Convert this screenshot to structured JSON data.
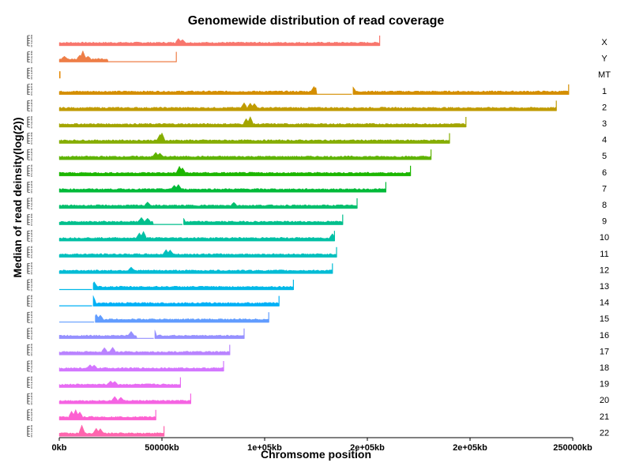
{
  "chart_data": {
    "type": "area",
    "title": "Genomewide distribution of read coverage",
    "xlabel": "Chromsome position",
    "ylabel": "Median of read deinsity(log(2))",
    "xlim": [
      0,
      250000
    ],
    "x_unit": "kb",
    "x_ticks": [
      {
        "value": 0,
        "label": "0kb"
      },
      {
        "value": 50000,
        "label": "50000kb"
      },
      {
        "value": 100000,
        "label": "1e+05kb"
      },
      {
        "value": 150000,
        "label": "2e+05kb"
      },
      {
        "value": 200000,
        "label": "2e+05kb"
      },
      {
        "value": 250000,
        "label": "250000kb"
      }
    ],
    "y_tick_labels": [
      "0",
      "2",
      "4",
      "6",
      "8"
    ],
    "series": [
      {
        "name": "X",
        "length": 156000,
        "color": "#F8766D",
        "peaks": [
          [
            58000,
            0.5
          ],
          [
            60000,
            0.35
          ]
        ],
        "gaps": []
      },
      {
        "name": "Y",
        "length": 57000,
        "color": "#EE7E47",
        "peaks": [
          [
            2500,
            0.3
          ],
          [
            10000,
            0.45
          ],
          [
            11500,
            1.0
          ],
          [
            14000,
            0.3
          ]
        ],
        "gaps": [
          [
            24000,
            57000
          ]
        ]
      },
      {
        "name": "MT",
        "length": 200,
        "color": "#E58700",
        "peaks": [],
        "gaps": []
      },
      {
        "name": "1",
        "length": 248000,
        "color": "#D48E00",
        "peaks": [
          [
            124000,
            0.6
          ],
          [
            125000,
            0.45
          ],
          [
            142000,
            1.0
          ],
          [
            143000,
            0.55
          ]
        ],
        "gaps": [
          [
            125500,
            142500
          ]
        ]
      },
      {
        "name": "2",
        "length": 242000,
        "color": "#C09B00",
        "peaks": [
          [
            90000,
            0.6
          ],
          [
            93000,
            0.55
          ],
          [
            95000,
            0.5
          ]
        ],
        "gaps": []
      },
      {
        "name": "3",
        "length": 198000,
        "color": "#A3A500",
        "peaks": [
          [
            91000,
            0.65
          ],
          [
            93000,
            0.9
          ]
        ],
        "gaps": []
      },
      {
        "name": "4",
        "length": 190000,
        "color": "#85AD00",
        "peaks": [
          [
            49000,
            0.7
          ],
          [
            50000,
            0.9
          ]
        ],
        "gaps": []
      },
      {
        "name": "5",
        "length": 181000,
        "color": "#5EB300",
        "peaks": [
          [
            47000,
            0.5
          ],
          [
            49000,
            0.4
          ]
        ],
        "gaps": []
      },
      {
        "name": "6",
        "length": 171000,
        "color": "#1CB600",
        "peaks": [
          [
            58500,
            0.8
          ],
          [
            60000,
            0.6
          ]
        ],
        "gaps": []
      },
      {
        "name": "7",
        "length": 159000,
        "color": "#00BA38",
        "peaks": [
          [
            56000,
            0.45
          ],
          [
            58000,
            0.55
          ]
        ],
        "gaps": []
      },
      {
        "name": "8",
        "length": 145000,
        "color": "#00BE6C",
        "peaks": [
          [
            43000,
            0.4
          ],
          [
            85000,
            0.35
          ]
        ],
        "gaps": []
      },
      {
        "name": "9",
        "length": 138000,
        "color": "#00BF8C",
        "peaks": [
          [
            40000,
            0.5
          ],
          [
            43000,
            0.4
          ],
          [
            60000,
            0.6
          ]
        ],
        "gaps": [
          [
            46000,
            60000
          ]
        ]
      },
      {
        "name": "10",
        "length": 134000,
        "color": "#00C0A5",
        "peaks": [
          [
            39000,
            0.6
          ],
          [
            41000,
            0.8
          ],
          [
            133000,
            0.5
          ]
        ],
        "gaps": []
      },
      {
        "name": "11",
        "length": 135000,
        "color": "#00BFBD",
        "peaks": [
          [
            52000,
            0.55
          ],
          [
            54000,
            0.5
          ]
        ],
        "gaps": []
      },
      {
        "name": "12",
        "length": 133000,
        "color": "#00BCD5",
        "peaks": [
          [
            35000,
            0.4
          ]
        ],
        "gaps": []
      },
      {
        "name": "13",
        "length": 114000,
        "color": "#00B8E7",
        "peaks": [
          [
            17000,
            0.6
          ]
        ],
        "gaps": [
          [
            0,
            16000
          ]
        ]
      },
      {
        "name": "14",
        "length": 107000,
        "color": "#00B0F6",
        "peaks": [
          [
            16500,
            0.9
          ]
        ],
        "gaps": [
          [
            0,
            16000
          ]
        ]
      },
      {
        "name": "15",
        "length": 102000,
        "color": "#619CFF",
        "peaks": [
          [
            18000,
            0.6
          ],
          [
            20000,
            0.5
          ]
        ],
        "gaps": [
          [
            0,
            17000
          ]
        ]
      },
      {
        "name": "16",
        "length": 90000,
        "color": "#9590FF",
        "peaks": [
          [
            35000,
            0.5
          ],
          [
            46000,
            1.0
          ]
        ],
        "gaps": [
          [
            38000,
            46000
          ]
        ]
      },
      {
        "name": "17",
        "length": 83000,
        "color": "#B983FF",
        "peaks": [
          [
            22000,
            0.5
          ],
          [
            26000,
            0.55
          ]
        ],
        "gaps": []
      },
      {
        "name": "18",
        "length": 80000,
        "color": "#D376FF",
        "peaks": [
          [
            15000,
            0.4
          ],
          [
            17000,
            0.35
          ]
        ],
        "gaps": []
      },
      {
        "name": "19",
        "length": 59000,
        "color": "#E76BF3",
        "peaks": [
          [
            25000,
            0.4
          ],
          [
            27000,
            0.35
          ]
        ],
        "gaps": []
      },
      {
        "name": "20",
        "length": 64000,
        "color": "#F564E3",
        "peaks": [
          [
            27000,
            0.5
          ],
          [
            30000,
            0.4
          ]
        ],
        "gaps": []
      },
      {
        "name": "21",
        "length": 47000,
        "color": "#FD61D1",
        "peaks": [
          [
            6000,
            0.7
          ],
          [
            8000,
            0.9
          ],
          [
            10000,
            0.6
          ]
        ],
        "gaps": []
      },
      {
        "name": "22",
        "length": 51000,
        "color": "#FF65AE",
        "peaks": [
          [
            11000,
            1.0
          ],
          [
            18000,
            0.6
          ],
          [
            20000,
            0.55
          ]
        ],
        "gaps": []
      }
    ]
  }
}
